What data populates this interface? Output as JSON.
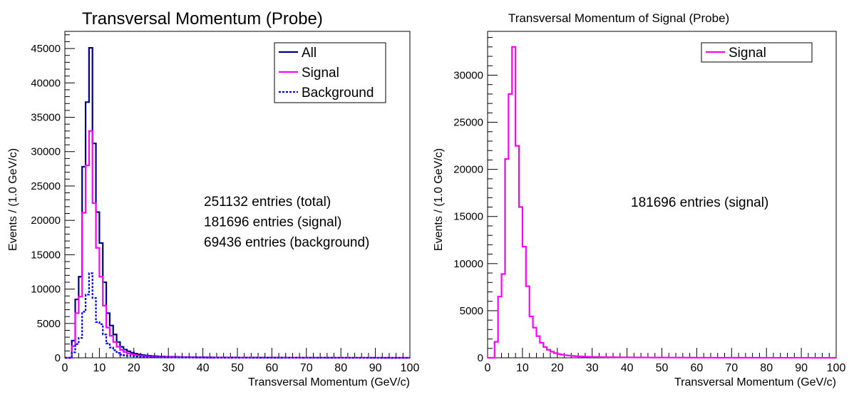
{
  "chart_data": [
    {
      "type": "line",
      "title": "Transversal Momentum (Probe)",
      "xlabel": "Transversal Momentum (GeV/c)",
      "ylabel": "Events / (1.0 GeV/c)",
      "xlim": [
        0,
        100
      ],
      "ylim": [
        0,
        47500
      ],
      "x_ticks": [
        "0",
        "10",
        "20",
        "30",
        "40",
        "50",
        "60",
        "70",
        "80",
        "90",
        "100"
      ],
      "y_ticks": [
        "0",
        "5000",
        "10000",
        "15000",
        "20000",
        "25000",
        "30000",
        "35000",
        "40000",
        "45000"
      ],
      "legend_position": "top-right",
      "legend": [
        "All",
        "Signal",
        "Background"
      ],
      "annotations": [
        "251132 entries (total)",
        "181696 entries (signal)",
        "69436 entries (background)"
      ],
      "bin_width": 1,
      "series": [
        {
          "name": "All",
          "color": "#000080",
          "dash": "solid",
          "values": [
            0,
            0,
            2500,
            8500,
            11800,
            27800,
            37200,
            45100,
            31200,
            21200,
            16700,
            11000,
            6500,
            4700,
            3400,
            2300,
            1600,
            1200,
            950,
            750,
            600,
            500,
            420,
            350,
            300,
            260,
            230,
            200,
            180,
            160,
            150,
            140,
            130,
            120,
            110,
            100,
            95,
            90,
            85,
            80,
            75,
            70,
            65,
            60,
            58,
            56,
            54,
            52,
            50,
            48,
            46,
            44,
            42,
            40,
            38,
            36,
            34,
            32,
            30,
            28,
            26,
            25,
            24,
            23,
            22,
            21,
            20,
            19,
            18,
            17,
            16,
            15,
            14,
            13,
            12,
            11,
            10,
            10,
            9,
            9,
            8,
            8,
            7,
            7,
            6,
            6,
            5,
            5,
            5,
            4,
            4,
            4,
            3,
            3,
            3,
            3,
            2,
            2,
            2,
            2
          ]
        },
        {
          "name": "Signal",
          "color": "#ff00ff",
          "dash": "solid",
          "values": [
            0,
            0,
            1700,
            6500,
            8900,
            21100,
            28000,
            33000,
            22500,
            16000,
            11800,
            7600,
            4400,
            3200,
            2300,
            1600,
            1150,
            850,
            650,
            500,
            400,
            330,
            270,
            230,
            200,
            170,
            150,
            130,
            115,
            105,
            95,
            88,
            82,
            76,
            70,
            65,
            60,
            56,
            52,
            48,
            45,
            42,
            40,
            38,
            36,
            34,
            32,
            30,
            28,
            27,
            26,
            25,
            24,
            23,
            22,
            21,
            20,
            19,
            18,
            17,
            16,
            15,
            14,
            13,
            13,
            12,
            12,
            11,
            11,
            10,
            10,
            9,
            9,
            8,
            8,
            7,
            7,
            7,
            6,
            6,
            6,
            5,
            5,
            5,
            4,
            4,
            4,
            4,
            3,
            3,
            3,
            3,
            3,
            2,
            2,
            2,
            2,
            2,
            2,
            2
          ]
        },
        {
          "name": "Background",
          "color": "#0000ff",
          "dash": "dotted",
          "values": [
            0,
            0,
            800,
            2000,
            2900,
            6700,
            9200,
            12300,
            8700,
            5200,
            4900,
            3400,
            2100,
            1500,
            1100,
            700,
            450,
            350,
            300,
            250,
            200,
            170,
            150,
            120,
            100,
            90,
            80,
            70,
            65,
            55,
            55,
            52,
            48,
            44,
            40,
            35,
            35,
            34,
            33,
            32,
            30,
            28,
            25,
            22,
            22,
            22,
            22,
            22,
            22,
            21,
            20,
            19,
            18,
            17,
            16,
            15,
            14,
            13,
            12,
            11,
            10,
            10,
            10,
            10,
            9,
            9,
            8,
            8,
            7,
            7,
            6,
            6,
            5,
            5,
            4,
            4,
            3,
            3,
            3,
            3,
            2,
            3,
            2,
            2,
            2,
            2,
            1,
            1,
            2,
            1,
            1,
            1,
            0,
            1,
            1,
            1,
            0,
            0,
            0,
            0
          ]
        }
      ]
    },
    {
      "type": "line",
      "title": "Transversal Momentum of Signal (Probe)",
      "xlabel": "Transversal Momentum (GeV/c)",
      "ylabel": "Events / (1.0 GeV/c)",
      "xlim": [
        0,
        100
      ],
      "ylim": [
        0,
        34650
      ],
      "x_ticks": [
        "0",
        "10",
        "20",
        "30",
        "40",
        "50",
        "60",
        "70",
        "80",
        "90",
        "100"
      ],
      "y_ticks": [
        "0",
        "5000",
        "10000",
        "15000",
        "20000",
        "25000",
        "30000"
      ],
      "legend_position": "top-right",
      "legend": [
        "Signal"
      ],
      "annotations": [
        "181696 entries (signal)"
      ],
      "bin_width": 1,
      "series": [
        {
          "name": "Signal",
          "color": "#ff00ff",
          "dash": "solid",
          "values": [
            0,
            0,
            1700,
            6500,
            8900,
            21100,
            28000,
            33000,
            22500,
            16000,
            11800,
            7600,
            4400,
            3200,
            2300,
            1600,
            1150,
            850,
            650,
            500,
            400,
            330,
            270,
            230,
            200,
            170,
            150,
            130,
            115,
            105,
            95,
            88,
            82,
            76,
            70,
            65,
            60,
            56,
            52,
            48,
            45,
            42,
            40,
            38,
            36,
            34,
            32,
            30,
            28,
            27,
            26,
            25,
            24,
            23,
            22,
            21,
            20,
            19,
            18,
            17,
            16,
            15,
            14,
            13,
            13,
            12,
            12,
            11,
            11,
            10,
            10,
            9,
            9,
            8,
            8,
            7,
            7,
            7,
            6,
            6,
            6,
            5,
            5,
            5,
            4,
            4,
            4,
            4,
            3,
            3,
            3,
            3,
            3,
            2,
            2,
            2,
            2,
            2,
            2,
            2
          ]
        }
      ]
    }
  ]
}
